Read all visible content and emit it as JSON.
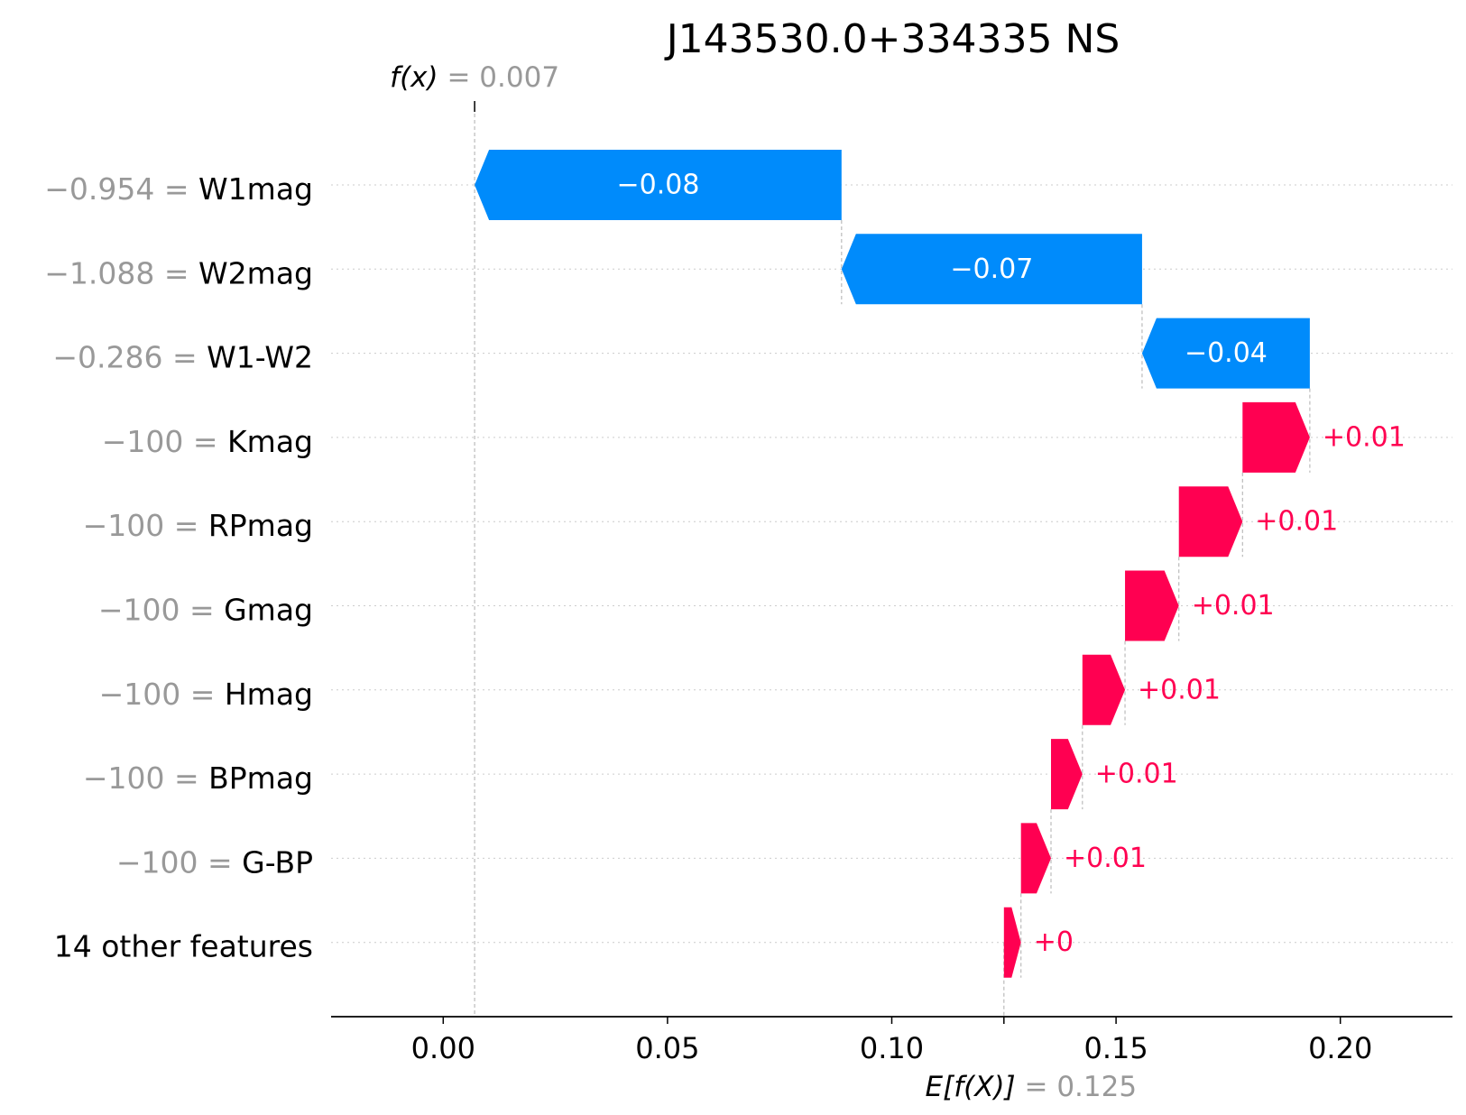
{
  "chart_data": {
    "type": "waterfall",
    "title": "J143530.0+334335 NS",
    "fx_label": "f(x)",
    "fx_value": 0.007,
    "fx_value_text": "0.007",
    "efx_label": "E[f(X)]",
    "efx_value": 0.125,
    "efx_value_text": "0.125",
    "xlim": [
      -0.025,
      0.225
    ],
    "x_ticks": [
      {
        "value": 0.0,
        "label": "0.00"
      },
      {
        "value": 0.05,
        "label": "0.05"
      },
      {
        "value": 0.1,
        "label": "0.10"
      },
      {
        "value": 0.15,
        "label": "0.15"
      },
      {
        "value": 0.2,
        "label": "0.20"
      }
    ],
    "features": [
      {
        "name": "W1mag",
        "value_text": "−0.954",
        "start": 0.0888,
        "end": 0.007,
        "label": "−0.08"
      },
      {
        "name": "W2mag",
        "value_text": "−1.088",
        "start": 0.1558,
        "end": 0.0888,
        "label": "−0.07"
      },
      {
        "name": "W1-W2",
        "value_text": "−0.286",
        "start": 0.1932,
        "end": 0.1558,
        "label": "−0.04"
      },
      {
        "name": "Kmag",
        "value_text": "−100",
        "start": 0.1782,
        "end": 0.1932,
        "label": "+0.01"
      },
      {
        "name": "RPmag",
        "value_text": "−100",
        "start": 0.164,
        "end": 0.1782,
        "label": "+0.01"
      },
      {
        "name": "Gmag",
        "value_text": "−100",
        "start": 0.152,
        "end": 0.164,
        "label": "+0.01"
      },
      {
        "name": "Hmag",
        "value_text": "−100",
        "start": 0.1425,
        "end": 0.152,
        "label": "+0.01"
      },
      {
        "name": "BPmag",
        "value_text": "−100",
        "start": 0.1355,
        "end": 0.1425,
        "label": "+0.01"
      },
      {
        "name": "G-BP",
        "value_text": "−100",
        "start": 0.1288,
        "end": 0.1355,
        "label": "+0.01"
      },
      {
        "name": "14 other features",
        "value_text": "",
        "start": 0.125,
        "end": 0.1288,
        "label": "+0"
      }
    ],
    "colors": {
      "negative": "#008bfb",
      "positive": "#ff0051",
      "value_text": "#999999",
      "axis": "#000000"
    }
  }
}
